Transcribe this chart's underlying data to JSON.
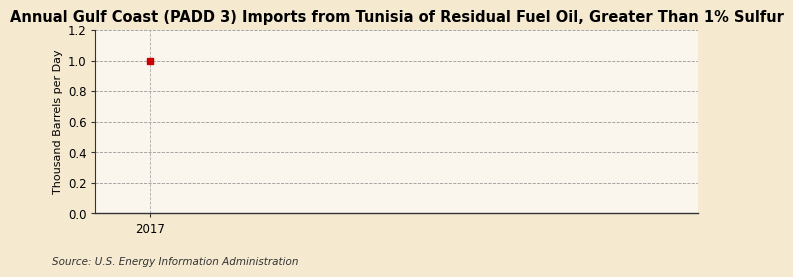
{
  "title": "Annual Gulf Coast (PADD 3) Imports from Tunisia of Residual Fuel Oil, Greater Than 1% Sulfur",
  "ylabel": "Thousand Barrels per Day",
  "source": "Source: U.S. Energy Information Administration",
  "x_data": [
    2017
  ],
  "y_data": [
    1.0
  ],
  "xlim": [
    2016.85,
    2018.5
  ],
  "ylim": [
    0.0,
    1.2
  ],
  "yticks": [
    0.0,
    0.2,
    0.4,
    0.6,
    0.8,
    1.0,
    1.2
  ],
  "xticks": [
    2017
  ],
  "point_color": "#cc0000",
  "point_marker": "s",
  "point_size": 4,
  "bg_color": "#f5e9d0",
  "plot_bg_color": "#faf6ee",
  "grid_color": "#999999",
  "vline_color": "#aaaaaa",
  "title_fontsize": 10.5,
  "label_fontsize": 8,
  "tick_fontsize": 8.5,
  "source_fontsize": 7.5,
  "spine_color": "#333333"
}
